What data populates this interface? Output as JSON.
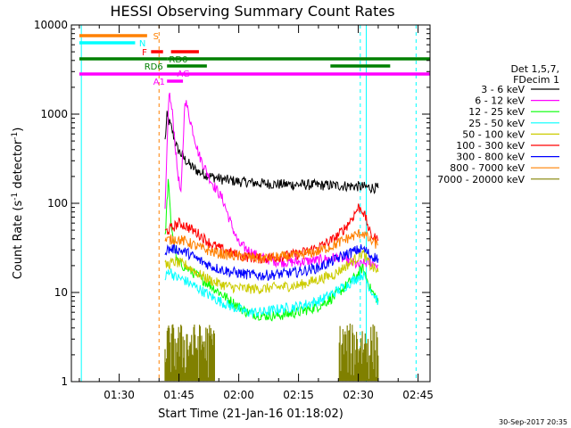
{
  "chart_data": {
    "type": "line",
    "title": "HESSI Observing Summary Count Rates",
    "xlabel": "Start Time (21-Jan-16 01:18:02)",
    "ylabel_main": "Count Rate (s",
    "ylabel_exp1": "-1",
    "ylabel_mid": " detector",
    "ylabel_exp2": "-1",
    "ylabel_end": ")",
    "yscale": "log",
    "ylim": [
      1,
      10000
    ],
    "xlim_minutes": [
      78,
      168
    ],
    "x_ticks": [
      {
        "t": 90,
        "label": "01:30"
      },
      {
        "t": 105,
        "label": "01:45"
      },
      {
        "t": 120,
        "label": "02:00"
      },
      {
        "t": 135,
        "label": "02:15"
      },
      {
        "t": 150,
        "label": "02:30"
      },
      {
        "t": 165,
        "label": "02:45"
      }
    ],
    "y_ticks": [
      {
        "v": 1,
        "label": "1"
      },
      {
        "v": 10,
        "label": "10"
      },
      {
        "v": 100,
        "label": "100"
      },
      {
        "v": 1000,
        "label": "1000"
      },
      {
        "v": 10000,
        "label": "10000"
      }
    ],
    "legend": {
      "header1": "Det 1,5,7,",
      "header2": "FDecim 1",
      "placement": "right"
    },
    "series": [
      {
        "name": "3 - 6 keV",
        "color": "#000000",
        "points": [
          [
            101.5,
            500
          ],
          [
            102,
            950
          ],
          [
            103,
            720
          ],
          [
            104.5,
            420
          ],
          [
            106,
            330
          ],
          [
            108,
            260
          ],
          [
            110,
            225
          ],
          [
            113,
            200
          ],
          [
            116,
            185
          ],
          [
            120,
            175
          ],
          [
            125,
            168
          ],
          [
            130,
            163
          ],
          [
            135,
            162
          ],
          [
            140,
            160
          ],
          [
            145,
            158
          ],
          [
            150,
            155
          ],
          [
            153,
            150
          ],
          [
            155,
            148
          ]
        ]
      },
      {
        "name": "6 - 12 keV",
        "color": "#ff00ff",
        "points": [
          [
            101.5,
            80
          ],
          [
            102.5,
            1800
          ],
          [
            103.5,
            900
          ],
          [
            104.5,
            260
          ],
          [
            105.5,
            120
          ],
          [
            106.5,
            1500
          ],
          [
            108,
            800
          ],
          [
            110,
            350
          ],
          [
            113,
            180
          ],
          [
            116,
            110
          ],
          [
            118,
            60
          ],
          [
            120,
            35
          ],
          [
            125,
            25
          ],
          [
            130,
            22
          ],
          [
            135,
            22
          ],
          [
            140,
            23
          ],
          [
            145,
            25
          ],
          [
            148,
            22
          ],
          [
            150,
            20
          ],
          [
            153,
            22
          ],
          [
            155,
            20
          ]
        ]
      },
      {
        "name": "12 - 25 keV",
        "color": "#00ff00",
        "points": [
          [
            101.5,
            40
          ],
          [
            102.3,
            180
          ],
          [
            103,
            60
          ],
          [
            104.5,
            22
          ],
          [
            106,
            20
          ],
          [
            110,
            15
          ],
          [
            114,
            11
          ],
          [
            118,
            8
          ],
          [
            122,
            6
          ],
          [
            126,
            5.5
          ],
          [
            130,
            5.5
          ],
          [
            135,
            6
          ],
          [
            140,
            7
          ],
          [
            144,
            9
          ],
          [
            147,
            12
          ],
          [
            150,
            16
          ],
          [
            151,
            19
          ],
          [
            152,
            15
          ],
          [
            153,
            11
          ],
          [
            155,
            8
          ]
        ]
      },
      {
        "name": "25 - 50 keV",
        "color": "#00ffff",
        "points": [
          [
            101.5,
            14
          ],
          [
            102.5,
            18
          ],
          [
            104,
            15
          ],
          [
            106,
            14
          ],
          [
            110,
            11
          ],
          [
            114,
            8.5
          ],
          [
            118,
            7
          ],
          [
            122,
            6
          ],
          [
            126,
            6
          ],
          [
            130,
            6.5
          ],
          [
            135,
            7
          ],
          [
            140,
            8
          ],
          [
            144,
            10
          ],
          [
            147,
            12
          ],
          [
            150,
            15
          ],
          [
            151,
            16
          ],
          [
            152,
            14
          ],
          [
            153,
            11
          ],
          [
            155,
            8
          ]
        ]
      },
      {
        "name": "50 - 100 keV",
        "color": "#cccc00",
        "points": [
          [
            101.5,
            20
          ],
          [
            104,
            22
          ],
          [
            107,
            20
          ],
          [
            110,
            16
          ],
          [
            114,
            13
          ],
          [
            118,
            11.5
          ],
          [
            122,
            11
          ],
          [
            126,
            11
          ],
          [
            130,
            11.5
          ],
          [
            135,
            12
          ],
          [
            140,
            14
          ],
          [
            144,
            16
          ],
          [
            147,
            20
          ],
          [
            150,
            25
          ],
          [
            151,
            28
          ],
          [
            152,
            24
          ],
          [
            153,
            20
          ],
          [
            155,
            17
          ]
        ]
      },
      {
        "name": "100 - 300 keV",
        "color": "#ff0000",
        "points": [
          [
            101.5,
            48
          ],
          [
            103,
            52
          ],
          [
            105,
            60
          ],
          [
            107,
            55
          ],
          [
            110,
            45
          ],
          [
            113,
            35
          ],
          [
            116,
            30
          ],
          [
            120,
            26
          ],
          [
            125,
            24
          ],
          [
            130,
            25
          ],
          [
            135,
            27
          ],
          [
            140,
            32
          ],
          [
            144,
            40
          ],
          [
            147,
            55
          ],
          [
            149,
            75
          ],
          [
            150,
            90
          ],
          [
            151,
            85
          ],
          [
            152,
            65
          ],
          [
            153,
            45
          ],
          [
            155,
            38
          ]
        ]
      },
      {
        "name": "300 - 800 keV",
        "color": "#0000ff",
        "points": [
          [
            101.5,
            30
          ],
          [
            104,
            31
          ],
          [
            107,
            28
          ],
          [
            110,
            23
          ],
          [
            114,
            19
          ],
          [
            118,
            17
          ],
          [
            122,
            16
          ],
          [
            126,
            15.5
          ],
          [
            130,
            16
          ],
          [
            135,
            17
          ],
          [
            140,
            19
          ],
          [
            144,
            23
          ],
          [
            147,
            27
          ],
          [
            150,
            30
          ],
          [
            151,
            31
          ],
          [
            152,
            29
          ],
          [
            153,
            26
          ],
          [
            155,
            24
          ]
        ]
      },
      {
        "name": "800 - 7000 keV",
        "color": "#ff8000",
        "points": [
          [
            101.5,
            38
          ],
          [
            104,
            40
          ],
          [
            107,
            37
          ],
          [
            110,
            32
          ],
          [
            114,
            28
          ],
          [
            118,
            26
          ],
          [
            122,
            25
          ],
          [
            126,
            24
          ],
          [
            130,
            25
          ],
          [
            135,
            26
          ],
          [
            140,
            29
          ],
          [
            144,
            34
          ],
          [
            147,
            40
          ],
          [
            150,
            45
          ],
          [
            151,
            47
          ],
          [
            152,
            43
          ],
          [
            153,
            38
          ],
          [
            155,
            34
          ]
        ]
      },
      {
        "name": "7000 - 20000 keV",
        "color": "#808000",
        "type": "noise"
      }
    ],
    "mode_bars": [
      {
        "label": "S",
        "color": "#ff8000"
      },
      {
        "label": "N",
        "color": "#00ffff"
      },
      {
        "label": "F",
        "color": "#ff0000"
      },
      {
        "label": "RD0",
        "color": "#008000"
      },
      {
        "label": "RD6",
        "color": "#008000"
      },
      {
        "label": "AG",
        "color": "#ff00ff"
      },
      {
        "label": "A1",
        "color": "#ff00ff"
      }
    ]
  },
  "footer": {
    "timestamp": "30-Sep-2017 20:35"
  }
}
